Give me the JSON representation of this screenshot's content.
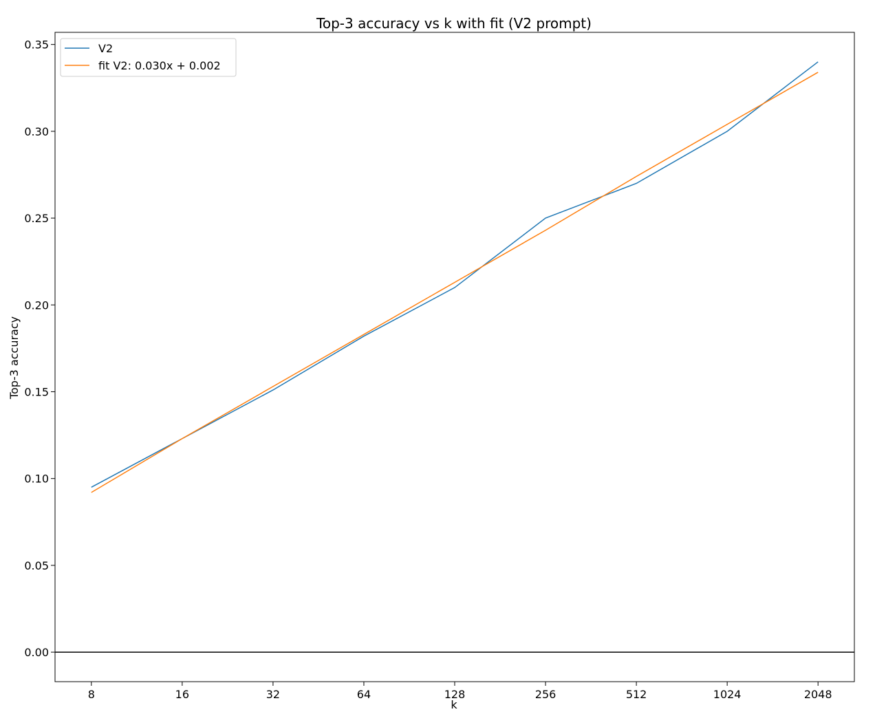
{
  "chart_data": {
    "type": "line",
    "title": "Top-3 accuracy vs k with fit (V2 prompt)",
    "xlabel": "k",
    "ylabel": "Top-3 accuracy",
    "x_ticks": [
      "8",
      "16",
      "32",
      "64",
      "128",
      "256",
      "512",
      "1024",
      "2048"
    ],
    "xlim": [
      -0.4,
      8.4
    ],
    "ylim": [
      -0.017,
      0.357
    ],
    "y_ticks": [
      0.0,
      0.05,
      0.1,
      0.15,
      0.2,
      0.25,
      0.3,
      0.35
    ],
    "y_tick_labels": [
      "0.00",
      "0.05",
      "0.10",
      "0.15",
      "0.20",
      "0.25",
      "0.30",
      "0.35"
    ],
    "reference_line_y": 0,
    "grid": false,
    "legend_position": "upper-left",
    "series": [
      {
        "name": "V2",
        "color": "#1f77b4",
        "values": [
          0.095,
          0.123,
          0.151,
          0.182,
          0.21,
          0.25,
          0.27,
          0.3,
          0.34
        ]
      },
      {
        "name": "fit V2: 0.030x + 0.002",
        "color": "#ff7f0e",
        "values": [
          0.092,
          0.123,
          0.153,
          0.183,
          0.213,
          0.243,
          0.274,
          0.304,
          0.334
        ]
      }
    ]
  }
}
